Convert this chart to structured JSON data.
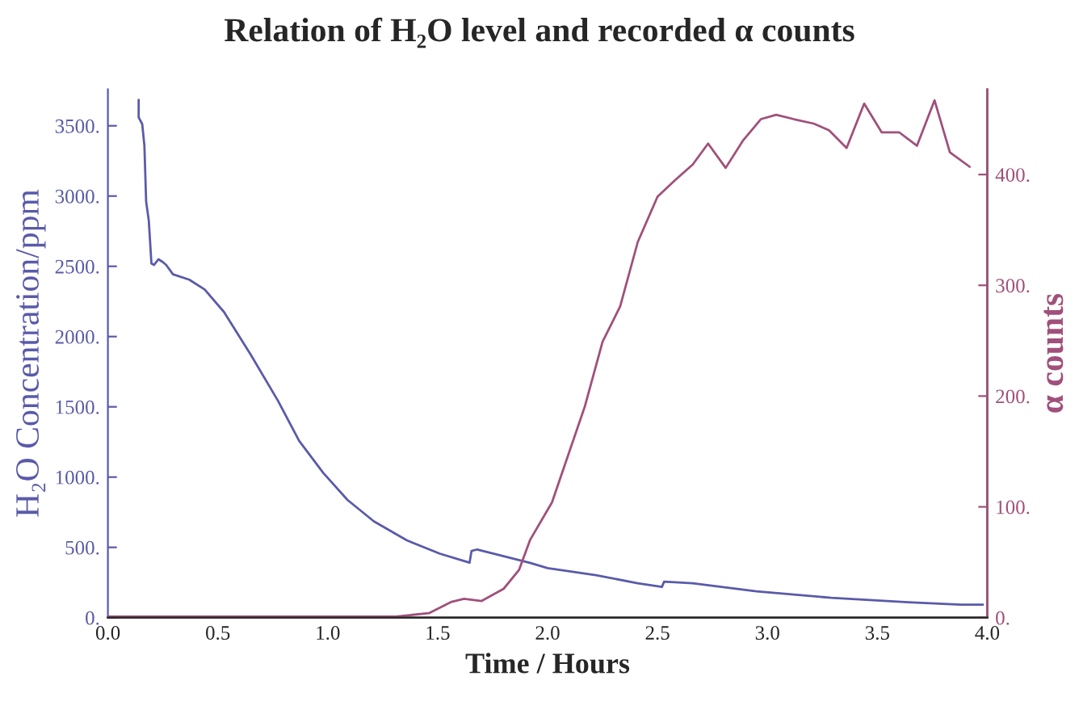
{
  "chart_data": {
    "type": "line",
    "title": "Relation of H₂O level and recorded α counts",
    "xlabel": "Time / Hours",
    "ylabel": "H₂O Concentration/ppm",
    "y2label": "α counts",
    "xlim": [
      0,
      4
    ],
    "xticks": [
      {
        "value": 0,
        "label": "0.0"
      },
      {
        "value": 0.5,
        "label": "0.5"
      },
      {
        "value": 1,
        "label": "1.0"
      },
      {
        "value": 1.5,
        "label": "1.5"
      },
      {
        "value": 2,
        "label": "2.0"
      },
      {
        "value": 2.5,
        "label": "2.5"
      },
      {
        "value": 3,
        "label": "3.0"
      },
      {
        "value": 3.5,
        "label": "3.5"
      },
      {
        "value": 4,
        "label": "4.0"
      }
    ],
    "ylim": [
      0,
      3760
    ],
    "yticks": [
      {
        "value": 0,
        "label": "0."
      },
      {
        "value": 500,
        "label": "500."
      },
      {
        "value": 1000,
        "label": "1000."
      },
      {
        "value": 1500,
        "label": "1500."
      },
      {
        "value": 2000,
        "label": "2000."
      },
      {
        "value": 2500,
        "label": "2500."
      },
      {
        "value": 3000,
        "label": "3000."
      },
      {
        "value": 3500,
        "label": "3500."
      }
    ],
    "y2lim": [
      0,
      477
    ],
    "y2ticks": [
      {
        "value": 0,
        "label": "0."
      },
      {
        "value": 100,
        "label": "100."
      },
      {
        "value": 200,
        "label": "200."
      },
      {
        "value": 300,
        "label": "300."
      },
      {
        "value": 400,
        "label": "400."
      }
    ],
    "grid": false,
    "legend": false,
    "series": [
      {
        "color": "#5a5aaa",
        "x": [
          0.14,
          0.14,
          0.156,
          0.166,
          0.174,
          0.186,
          0.198,
          0.21,
          0.23,
          0.25,
          0.265,
          0.296,
          0.37,
          0.44,
          0.528,
          0.65,
          0.773,
          0.87,
          0.98,
          1.09,
          1.21,
          1.36,
          1.51,
          1.63,
          1.645,
          1.654,
          1.68,
          1.92,
          2.0,
          2.22,
          2.41,
          2.52,
          2.53,
          2.66,
          2.95,
          3.29,
          3.64,
          3.88,
          3.98
        ],
        "values": [
          3685,
          3560,
          3513,
          3360,
          2960,
          2825,
          2520,
          2510,
          2550,
          2530,
          2510,
          2443,
          2405,
          2335,
          2175,
          1870,
          1545,
          1258,
          1029,
          837,
          685,
          550,
          455,
          398,
          390,
          474,
          485,
          390,
          352,
          302,
          245,
          218,
          256,
          245,
          187,
          141,
          110,
          92,
          92
        ]
      },
      {
        "color": "#a0507a",
        "axis": "y2",
        "x": [
          0.0,
          1.31,
          1.46,
          1.56,
          1.62,
          1.7,
          1.8,
          1.87,
          1.92,
          2.02,
          2.17,
          2.25,
          2.33,
          2.41,
          2.5,
          2.58,
          2.66,
          2.73,
          2.81,
          2.89,
          2.97,
          3.04,
          3.12,
          3.21,
          3.28,
          3.36,
          3.44,
          3.52,
          3.6,
          3.68,
          3.76,
          3.83,
          3.92
        ],
        "values": [
          1,
          1,
          4,
          14,
          17,
          15,
          26,
          43,
          70,
          104,
          191,
          249,
          281,
          339,
          380,
          395,
          409,
          428,
          406,
          431,
          450,
          454,
          450,
          446,
          440,
          424,
          464,
          438,
          438,
          426,
          467,
          420,
          407
        ]
      }
    ]
  }
}
